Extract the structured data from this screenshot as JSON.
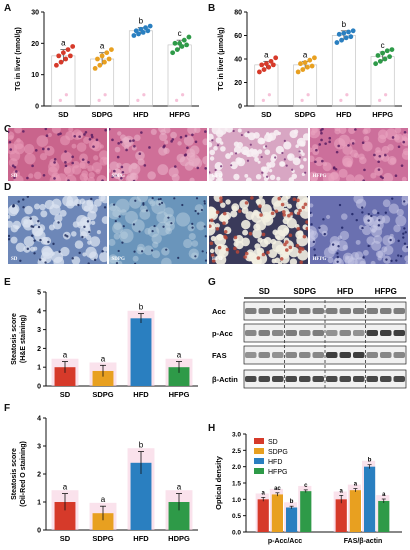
{
  "panels": {
    "A": "A",
    "B": "B",
    "C": "C",
    "D": "D",
    "E": "E",
    "F": "F",
    "G": "G",
    "H": "H"
  },
  "colors": {
    "SD": "#d63a2a",
    "SDPG": "#e8a020",
    "HFD": "#2a7fc0",
    "HFPG": "#2e9a48",
    "pink_bar": "#f6cfe0",
    "pink_dot": "#f2a6c8",
    "axis": "#111111"
  },
  "micrographs": {
    "he": [
      "SD",
      "SDPG",
      "HFD",
      "HFPG"
    ],
    "oilred": [
      "SD",
      "SDPG",
      "HFD",
      "HFPG"
    ]
  },
  "blot": {
    "groups": [
      "SD",
      "SDPG",
      "HFD",
      "HFPG"
    ],
    "rows": [
      "Acc",
      "p-Acc",
      "FAS",
      "β-Actin"
    ]
  },
  "chart_data": [
    {
      "id": "A",
      "type": "bar",
      "ylabel": "TG in liver (nmol/g)",
      "categories": [
        "SD",
        "SDPG",
        "HFD",
        "HFPG"
      ],
      "values": [
        16,
        15,
        24,
        19.5
      ],
      "errors": [
        2,
        2,
        1,
        1.5
      ],
      "letters": [
        "a",
        "a",
        "b",
        "c"
      ],
      "ylim": [
        0,
        30
      ],
      "yticks": [
        0,
        10,
        20,
        30
      ],
      "points": [
        [
          13,
          14,
          15,
          16,
          16,
          17,
          18,
          19
        ],
        [
          12,
          13,
          14,
          15,
          15,
          16,
          17,
          18
        ],
        [
          22.5,
          23,
          23.5,
          24,
          24,
          24.5,
          25,
          25.5
        ],
        [
          17,
          18,
          19,
          19.5,
          20,
          20,
          21,
          22
        ]
      ]
    },
    {
      "id": "B",
      "type": "bar",
      "ylabel": "TC in liver (μmol/g)",
      "categories": [
        "SD",
        "SDPG",
        "HFD",
        "HFPG"
      ],
      "values": [
        35,
        35,
        60,
        42
      ],
      "errors": [
        3,
        3,
        4,
        4
      ],
      "letters": [
        "a",
        "a",
        "b",
        "c"
      ],
      "ylim": [
        0,
        80
      ],
      "yticks": [
        0,
        20,
        40,
        60,
        80
      ],
      "points": [
        [
          29,
          31,
          33,
          35,
          35,
          36,
          38,
          41
        ],
        [
          29,
          31,
          33,
          34,
          36,
          37,
          39,
          41
        ],
        [
          54,
          56,
          58,
          59,
          61,
          62,
          63,
          64
        ],
        [
          36,
          38,
          40,
          42,
          43,
          45,
          47,
          48
        ]
      ]
    },
    {
      "id": "E",
      "type": "bar",
      "ylabel": "Steatosis score",
      "ylabel2": "(H&E staining)",
      "categories": [
        "SD",
        "SDPG",
        "HFD",
        "HFPG"
      ],
      "values": [
        1.0,
        0.8,
        3.6,
        1.0
      ],
      "errors": [
        0.3,
        0.3,
        0.25,
        0.3
      ],
      "letters": [
        "a",
        "a",
        "b",
        "a"
      ],
      "ylim": [
        0,
        5
      ],
      "yticks": [
        0,
        1,
        2,
        3,
        4,
        5
      ]
    },
    {
      "id": "F",
      "type": "bar",
      "ylabel": "Steatosis score",
      "ylabel2": "(Oil-Red O staining)",
      "categories": [
        "SD",
        "SDPG",
        "HFD",
        "HDPG"
      ],
      "values": [
        1.0,
        0.6,
        2.4,
        1.0
      ],
      "errors": [
        0.3,
        0.25,
        0.4,
        0.3
      ],
      "letters": [
        "a",
        "a",
        "b",
        "a"
      ],
      "ylim": [
        0,
        4
      ],
      "yticks": [
        0,
        1,
        2,
        3,
        4
      ]
    },
    {
      "id": "H",
      "type": "bar",
      "ylabel": "Optical density",
      "categories": [
        "p-Acc/Acc",
        "FAS/β-actin"
      ],
      "series": [
        {
          "name": "SD",
          "values": [
            1.0,
            1.0
          ],
          "errors": [
            0.06,
            0.12
          ],
          "letters": [
            "a",
            "a"
          ]
        },
        {
          "name": "SDPG",
          "values": [
            1.15,
            1.28
          ],
          "errors": [
            0.05,
            0.05
          ],
          "letters": [
            "ac",
            "a"
          ]
        },
        {
          "name": "HFD",
          "values": [
            0.75,
            2.0
          ],
          "errors": [
            0.04,
            0.06
          ],
          "letters": [
            "b",
            "b"
          ]
        },
        {
          "name": "HFPG",
          "values": [
            1.25,
            0.95
          ],
          "errors": [
            0.04,
            0.06
          ],
          "letters": [
            "c",
            "a"
          ]
        }
      ],
      "ylim": [
        0,
        3.0
      ],
      "yticks": [
        0,
        0.5,
        1.0,
        1.5,
        2.0,
        2.5,
        3.0
      ],
      "legend": "top-left"
    }
  ]
}
